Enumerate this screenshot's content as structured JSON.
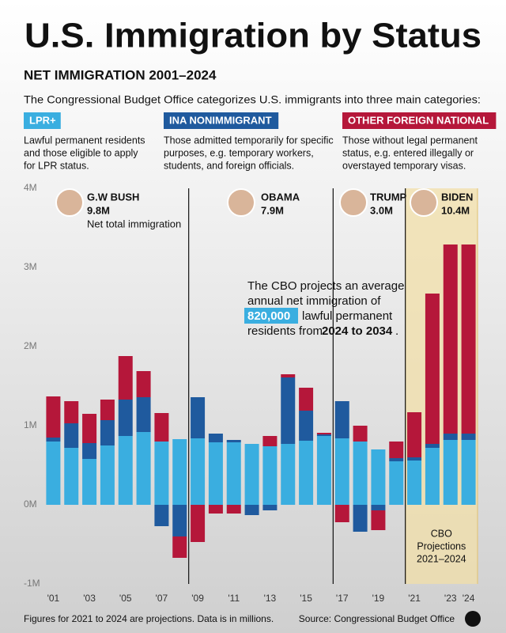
{
  "chart_data": {
    "type": "stacked_bar",
    "title": "U.S. Immigration by Status",
    "subtitle": "NET IMMIGRATION 2001–2024",
    "intro": "The Congressional Budget Office categorizes U.S. immigrants into three main categories:",
    "categories": [
      "'01",
      null,
      "'03",
      null,
      "'05",
      null,
      "'07",
      null,
      "'09",
      null,
      "'11",
      null,
      "'13",
      null,
      "'15",
      null,
      "'17",
      null,
      "'19",
      null,
      "'21",
      null,
      "'23",
      "'24"
    ],
    "series": [
      {
        "name": "LPR+",
        "color": "#3aaee0",
        "description": [
          "Lawful permanent residents",
          "and those eligible to apply",
          "for LPR status."
        ],
        "values": [
          0.8,
          0.72,
          0.58,
          0.75,
          0.87,
          0.92,
          0.8,
          0.83,
          0.84,
          0.79,
          0.79,
          0.77,
          0.74,
          0.77,
          0.81,
          0.87,
          0.84,
          0.8,
          0.7,
          0.55,
          0.56,
          0.72,
          0.82,
          0.82
        ]
      },
      {
        "name": "INA NONIMMIGRANT",
        "color": "#1f5a9e",
        "description": [
          "Those admitted temporarily for specific",
          "purposes, e.g. temporary workers,",
          "students, and foreign officials."
        ],
        "values": [
          0.05,
          0.31,
          0.2,
          0.32,
          0.46,
          0.44,
          -0.27,
          -0.4,
          0.52,
          0.11,
          0.03,
          -0.13,
          -0.07,
          0.84,
          0.38,
          0.02,
          0.47,
          -0.34,
          -0.07,
          0.04,
          0.04,
          0.05,
          0.08,
          0.08
        ]
      },
      {
        "name": "OTHER FOREIGN NATIONAL",
        "color": "#b5173a",
        "description": [
          "Those without legal permanent",
          "status, e.g. entered illegally or",
          "overstayed temporary visas."
        ],
        "values": [
          0.52,
          0.28,
          0.37,
          0.26,
          0.55,
          0.33,
          0.36,
          -0.27,
          -0.47,
          -0.11,
          -0.11,
          0,
          0.13,
          0.04,
          0.29,
          0.02,
          -0.22,
          0.2,
          -0.25,
          0.21,
          0.57,
          1.9,
          2.39,
          2.39
        ]
      }
    ],
    "ylim": [
      -1,
      4
    ],
    "yticks": [
      {
        "value": -1,
        "label": "-1M"
      },
      {
        "value": 0,
        "label": "0M"
      },
      {
        "value": 1,
        "label": "1M"
      },
      {
        "value": 2,
        "label": "2M"
      },
      {
        "value": 3,
        "label": "3M"
      },
      {
        "value": 4,
        "label": "4M"
      }
    ],
    "grid": false,
    "eras": [
      {
        "name": "G.W BUSH",
        "total": "9.8M",
        "note": "Net total immigration"
      },
      {
        "name": "OBAMA",
        "total": "7.9M"
      },
      {
        "name": "TRUMP",
        "total": "3.0M"
      },
      {
        "name": "BIDEN",
        "total": "10.4M"
      }
    ],
    "callout": {
      "lines": [
        "The CBO projects an average",
        "annual net immigration of"
      ],
      "highlight": "820,000",
      "after_highlight": "lawful permanent",
      "line4": "residents from",
      "bold": "2024 to 2034",
      "end": "."
    },
    "projection_label": [
      "CBO",
      "Projections",
      "2021–2024"
    ],
    "footnote": "Figures for 2021 to 2024 are projections. Data is in millions.",
    "source": "Source: Congressional Budget Office"
  }
}
